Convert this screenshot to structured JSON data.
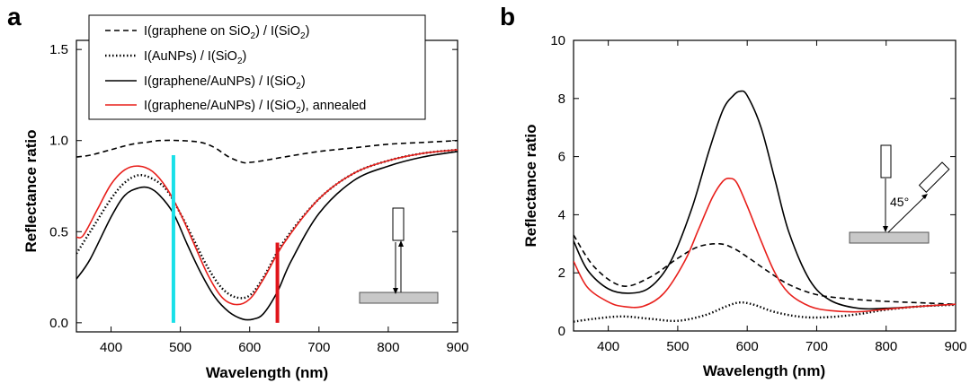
{
  "chart_data": [
    {
      "panel": "a",
      "type": "line",
      "xlabel": "Wavelength (nm)",
      "ylabel": "Reflectance ratio",
      "xlim": [
        350,
        900
      ],
      "ylim": [
        -0.05,
        1.55
      ],
      "xticks": [
        400,
        500,
        600,
        700,
        800,
        900
      ],
      "yticks": [
        0.0,
        0.5,
        1.0,
        1.5
      ],
      "ytick_labels": [
        "0.0",
        "0.5",
        "1.0",
        "1.5"
      ],
      "grid": false,
      "legend_position": "top-center",
      "series": [
        {
          "legend_main": "I(graphene on SiO",
          "legend_sub": "2",
          "legend_mid": ") / I(SiO",
          "legend_sub2": "2",
          "legend_end": ")",
          "color": "#000000",
          "style": "dashed",
          "x": [
            350,
            370,
            400,
            430,
            450,
            470,
            500,
            530,
            550,
            570,
            590,
            600,
            620,
            650,
            700,
            750,
            800,
            850,
            900
          ],
          "y": [
            0.91,
            0.92,
            0.95,
            0.98,
            0.99,
            1.0,
            1.0,
            0.99,
            0.96,
            0.91,
            0.88,
            0.88,
            0.89,
            0.91,
            0.94,
            0.96,
            0.98,
            0.99,
            1.0
          ]
        },
        {
          "legend_main": "I(AuNPs) / I(SiO",
          "legend_sub": "2",
          "legend_mid": ")",
          "legend_sub2": "",
          "legend_end": "",
          "color": "#000000",
          "style": "dotted",
          "x": [
            350,
            370,
            400,
            420,
            440,
            460,
            480,
            500,
            520,
            540,
            560,
            580,
            600,
            620,
            650,
            700,
            750,
            800,
            850,
            900
          ],
          "y": [
            0.38,
            0.5,
            0.68,
            0.77,
            0.81,
            0.79,
            0.73,
            0.6,
            0.45,
            0.3,
            0.19,
            0.14,
            0.15,
            0.25,
            0.45,
            0.68,
            0.82,
            0.89,
            0.93,
            0.95
          ]
        },
        {
          "legend_main": "I(graphene/AuNPs) / I(SiO",
          "legend_sub": "2",
          "legend_mid": ")",
          "legend_sub2": "",
          "legend_end": "",
          "color": "#000000",
          "style": "solid",
          "x": [
            350,
            370,
            400,
            420,
            440,
            455,
            470,
            490,
            510,
            530,
            550,
            570,
            590,
            605,
            620,
            640,
            660,
            700,
            750,
            800,
            850,
            900
          ],
          "y": [
            0.24,
            0.35,
            0.58,
            0.7,
            0.74,
            0.74,
            0.7,
            0.6,
            0.43,
            0.27,
            0.14,
            0.06,
            0.02,
            0.02,
            0.05,
            0.17,
            0.34,
            0.6,
            0.78,
            0.86,
            0.91,
            0.94
          ]
        },
        {
          "legend_main": "I(graphene/AuNPs) / I(SiO",
          "legend_sub": "2",
          "legend_mid": "), annealed",
          "legend_sub2": "",
          "legend_end": "",
          "color": "#e8201c",
          "style": "solid",
          "x": [
            350,
            360,
            380,
            400,
            420,
            440,
            460,
            480,
            500,
            520,
            540,
            560,
            580,
            600,
            620,
            650,
            700,
            750,
            800,
            850,
            900
          ],
          "y": [
            0.47,
            0.48,
            0.62,
            0.76,
            0.84,
            0.86,
            0.83,
            0.74,
            0.6,
            0.43,
            0.26,
            0.14,
            0.1,
            0.13,
            0.24,
            0.44,
            0.68,
            0.82,
            0.89,
            0.93,
            0.95
          ]
        }
      ],
      "markers": [
        {
          "x": 490,
          "y_from": 0.0,
          "y_to": 0.92,
          "color": "#19e0e8"
        },
        {
          "x": 640,
          "y_from": 0.0,
          "y_to": 0.44,
          "color": "#e0141a"
        }
      ]
    },
    {
      "panel": "b",
      "type": "line",
      "xlabel": "Wavelength (nm)",
      "ylabel": "Reflectance ratio",
      "xlim": [
        350,
        900
      ],
      "ylim": [
        0,
        10
      ],
      "xticks": [
        400,
        500,
        600,
        700,
        800,
        900
      ],
      "yticks": [
        0,
        2,
        4,
        6,
        8,
        10
      ],
      "ytick_labels": [
        "0",
        "2",
        "4",
        "6",
        "8",
        "10"
      ],
      "grid": false,
      "inset_angle_label": "45°",
      "series": [
        {
          "color": "#000000",
          "style": "dashed",
          "x": [
            350,
            380,
            420,
            460,
            500,
            530,
            560,
            580,
            600,
            630,
            660,
            700,
            750,
            800,
            850,
            900
          ],
          "y": [
            3.3,
            2.2,
            1.55,
            1.85,
            2.5,
            2.9,
            3.0,
            2.85,
            2.55,
            2.05,
            1.6,
            1.25,
            1.1,
            1.02,
            0.97,
            0.92
          ]
        },
        {
          "color": "#000000",
          "style": "dotted",
          "x": [
            350,
            380,
            420,
            460,
            500,
            540,
            570,
            590,
            610,
            640,
            680,
            720,
            760,
            800,
            850,
            900
          ],
          "y": [
            0.32,
            0.42,
            0.5,
            0.42,
            0.35,
            0.55,
            0.85,
            0.98,
            0.9,
            0.65,
            0.48,
            0.48,
            0.58,
            0.73,
            0.85,
            0.9
          ]
        },
        {
          "color": "#000000",
          "style": "solid",
          "x": [
            350,
            370,
            400,
            430,
            460,
            490,
            520,
            545,
            565,
            580,
            590,
            600,
            620,
            640,
            660,
            690,
            720,
            760,
            800,
            850,
            900
          ],
          "y": [
            3.1,
            2.1,
            1.45,
            1.3,
            1.5,
            2.4,
            4.2,
            6.2,
            7.6,
            8.1,
            8.25,
            8.1,
            7.0,
            5.2,
            3.4,
            1.75,
            1.05,
            0.78,
            0.78,
            0.85,
            0.92
          ]
        },
        {
          "color": "#e8201c",
          "style": "solid",
          "x": [
            350,
            370,
            400,
            420,
            450,
            480,
            510,
            530,
            550,
            565,
            575,
            585,
            600,
            620,
            640,
            660,
            690,
            720,
            760,
            800,
            850,
            900
          ],
          "y": [
            2.4,
            1.5,
            1.0,
            0.85,
            0.85,
            1.3,
            2.4,
            3.5,
            4.6,
            5.15,
            5.25,
            5.1,
            4.3,
            3.1,
            2.0,
            1.3,
            0.85,
            0.7,
            0.66,
            0.75,
            0.85,
            0.92
          ]
        }
      ]
    }
  ]
}
